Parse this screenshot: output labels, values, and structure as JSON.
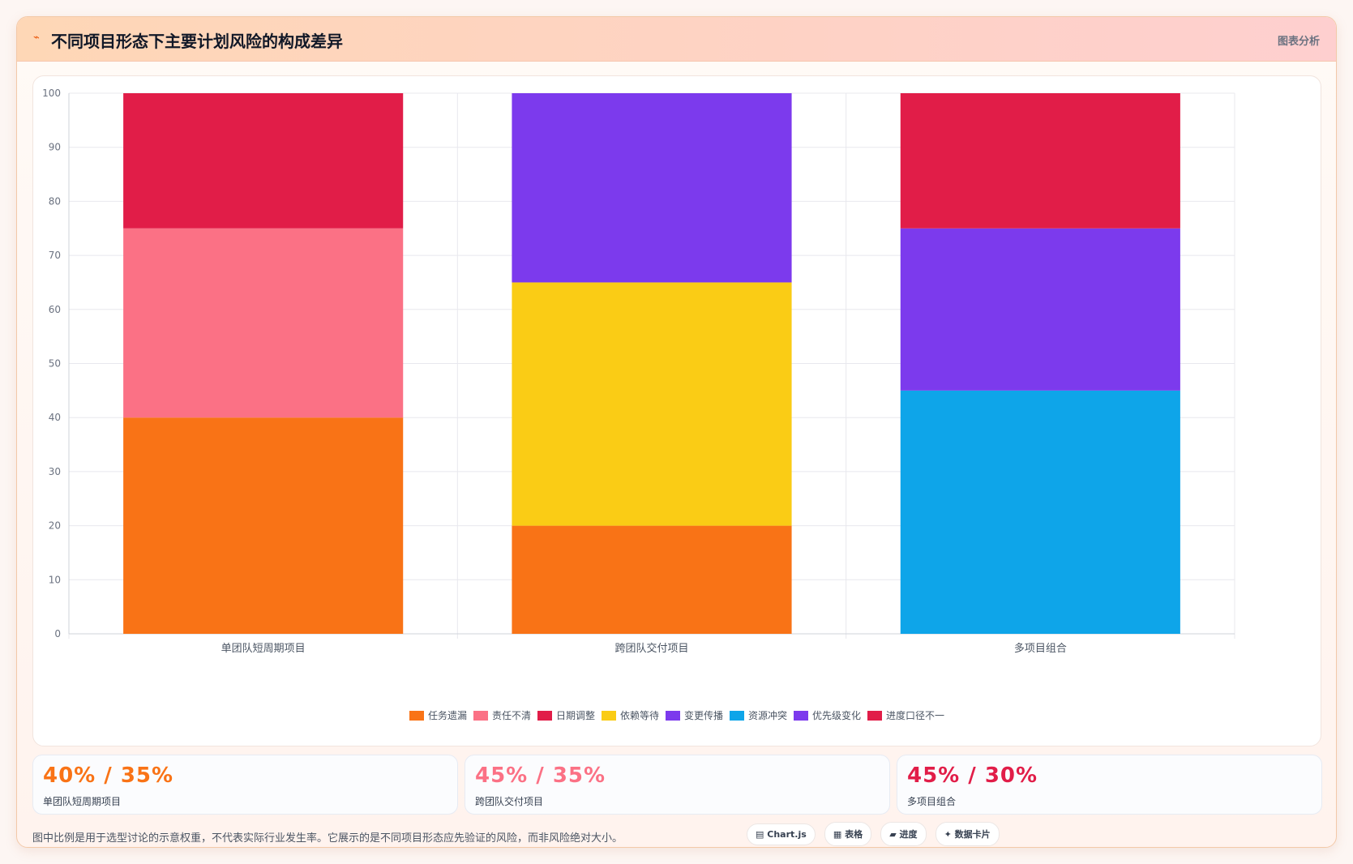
{
  "header": {
    "icon": "sparkle-icon",
    "title": "不同项目形态下主要计划风险的构成差异",
    "tag": "图表分析"
  },
  "chart_data": {
    "type": "bar",
    "stacked": true,
    "categories": [
      "单团队短周期项目",
      "跨团队交付项目",
      "多项目组合"
    ],
    "ylim": [
      0,
      100
    ],
    "yticks": [
      0,
      10,
      20,
      30,
      40,
      50,
      60,
      70,
      80,
      90,
      100
    ],
    "grid": true,
    "legend_position": "bottom",
    "series": [
      {
        "name": "任务遗漏",
        "color": "#f97316",
        "values": [
          40,
          20,
          0
        ]
      },
      {
        "name": "责任不清",
        "color": "#fb7185",
        "values": [
          35,
          0,
          0
        ]
      },
      {
        "name": "日期调整",
        "color": "#e11d48",
        "values": [
          25,
          0,
          0
        ]
      },
      {
        "name": "依赖等待",
        "color": "#facc15",
        "values": [
          0,
          45,
          0
        ]
      },
      {
        "name": "变更传播",
        "color": "#7c3aed",
        "values": [
          0,
          35,
          0
        ]
      },
      {
        "name": "资源冲突",
        "color": "#0ea5e9",
        "values": [
          0,
          0,
          45
        ]
      },
      {
        "name": "优先级变化",
        "color": "#7c3aed",
        "values": [
          0,
          0,
          30
        ]
      },
      {
        "name": "进度口径不一",
        "color": "#e11d48",
        "values": [
          0,
          0,
          25
        ]
      }
    ]
  },
  "stats": [
    {
      "value": "40% / 35%",
      "label": "单团队短周期项目",
      "color": "#f97316"
    },
    {
      "value": "45% / 35%",
      "label": "跨团队交付项目",
      "color": "#fb7185"
    },
    {
      "value": "45% / 30%",
      "label": "多项目组合",
      "color": "#e11d48"
    }
  ],
  "note": "图中比例是用于选型讨论的示意权重，不代表实际行业发生率。它展示的是不同项目形态应先验证的风险，而非风险绝对大小。",
  "pills": [
    {
      "icon": "chart-icon",
      "glyph": "▤",
      "label": "Chart.js"
    },
    {
      "icon": "table-icon",
      "glyph": "▦",
      "label": "表格"
    },
    {
      "icon": "progress-icon",
      "glyph": "▰",
      "label": "进度"
    },
    {
      "icon": "card-icon",
      "glyph": "✦",
      "label": "数据卡片"
    }
  ]
}
